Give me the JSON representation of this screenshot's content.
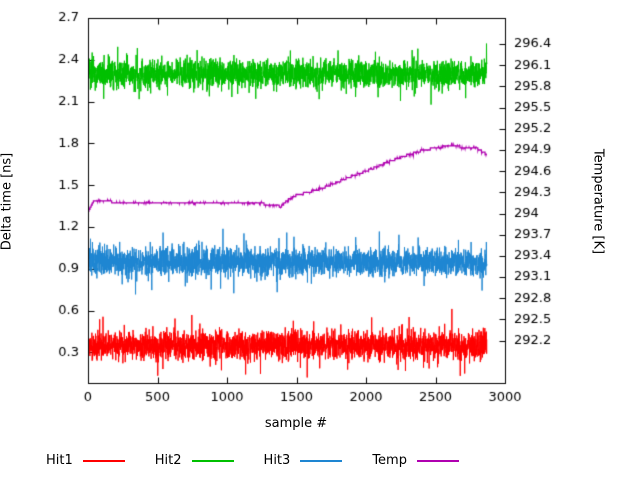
{
  "chart_data": {
    "type": "line",
    "title": "",
    "xlabel": "sample #",
    "ylabel_left": "Delta time [ns]",
    "ylabel_right": "Temperature [K]",
    "x_range": [
      0,
      3000
    ],
    "x_ticks": [
      0,
      500,
      1000,
      1500,
      2000,
      2500,
      3000
    ],
    "y_left_range": [
      0.08,
      2.7
    ],
    "y_left_ticks": [
      0.3,
      0.6,
      0.9,
      1.2,
      1.5,
      1.8,
      2.1,
      2.4,
      2.7
    ],
    "y_right_range": [
      291.6,
      296.77
    ],
    "y_right_ticks": [
      292.2,
      292.5,
      292.8,
      293.1,
      293.4,
      293.7,
      294,
      294.3,
      294.6,
      294.9,
      295.2,
      295.5,
      295.8,
      296.1,
      296.4
    ],
    "n_samples": 2870,
    "grid": false,
    "legend_position": "bottom",
    "series": [
      {
        "name": "Hit1",
        "color": "#ff0000",
        "axis": "left",
        "kind": "noise",
        "mean": 0.35,
        "spread": 0.17,
        "spike_prob": 0.03,
        "spike_mag": 0.11,
        "seed": 101,
        "approx_range": [
          0.1,
          0.62
        ]
      },
      {
        "name": "Hit2",
        "color": "#00c000",
        "axis": "left",
        "kind": "noise",
        "mean": 2.3,
        "spread": 0.17,
        "spike_prob": 0.03,
        "spike_mag": 0.11,
        "seed": 202,
        "approx_range": [
          2.05,
          2.55
        ]
      },
      {
        "name": "Hit3",
        "color": "#1e86d2",
        "axis": "left",
        "kind": "noise",
        "mean": 0.95,
        "spread": 0.17,
        "spike_prob": 0.03,
        "spike_mag": 0.11,
        "seed": 303,
        "approx_range": [
          0.68,
          1.25
        ]
      },
      {
        "name": "Temp",
        "color": "#b000b0",
        "axis": "right",
        "kind": "steps",
        "quantize": 0.03,
        "seed": 404,
        "keypoints": [
          [
            0,
            294.02
          ],
          [
            40,
            294.17
          ],
          [
            300,
            294.16
          ],
          [
            700,
            294.15
          ],
          [
            1100,
            294.16
          ],
          [
            1300,
            294.13
          ],
          [
            1390,
            294.1
          ],
          [
            1430,
            294.18
          ],
          [
            1500,
            294.26
          ],
          [
            1600,
            294.31
          ],
          [
            1700,
            294.37
          ],
          [
            1800,
            294.45
          ],
          [
            1900,
            294.53
          ],
          [
            2000,
            294.6
          ],
          [
            2100,
            294.68
          ],
          [
            2200,
            294.76
          ],
          [
            2300,
            294.83
          ],
          [
            2400,
            294.89
          ],
          [
            2500,
            294.93
          ],
          [
            2600,
            294.96
          ],
          [
            2700,
            294.94
          ],
          [
            2800,
            294.92
          ],
          [
            2870,
            294.84
          ]
        ]
      }
    ]
  }
}
